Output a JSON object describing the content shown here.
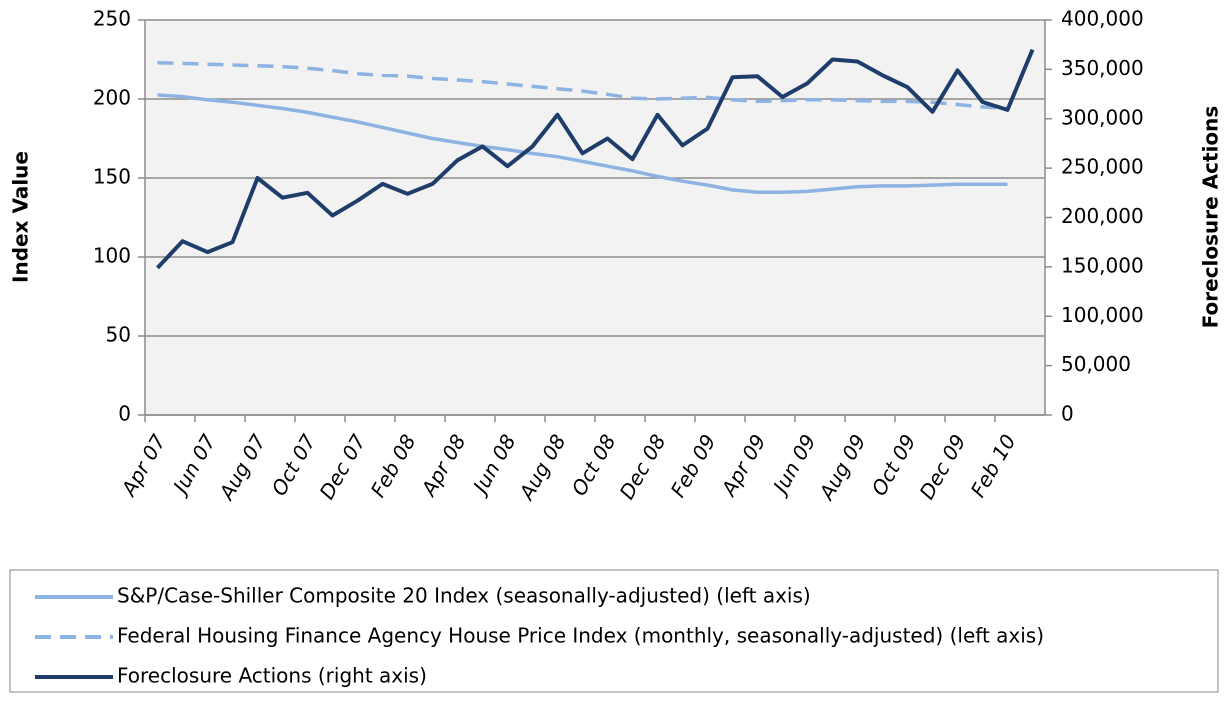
{
  "chart_data": {
    "type": "line",
    "ylabel": "Index Value",
    "y2label": "Foreclosure Actions",
    "categories": [
      "Apr 07",
      null,
      "Jun 07",
      null,
      "Aug 07",
      null,
      "Oct 07",
      null,
      "Dec 07",
      null,
      "Feb 08",
      null,
      "Apr 08",
      null,
      "Jun 08",
      null,
      "Aug 08",
      null,
      "Oct 08",
      null,
      "Dec 08",
      null,
      "Feb 09",
      null,
      "Apr 09",
      null,
      "Jun 09",
      null,
      "Aug 09",
      null,
      "Oct 09",
      null,
      "Dec 09",
      null,
      "Feb 10",
      null
    ],
    "series": [
      {
        "name": "S&P/Case-Shiller Composite 20 Index (seasonally-adjusted) (left axis)",
        "color": "#8db3e2",
        "dashed": false,
        "values": [
          202.5,
          201.5,
          199.5,
          198,
          196,
          194,
          191.5,
          188.5,
          185.5,
          182,
          178.5,
          175,
          172.5,
          170,
          168,
          165.5,
          163.5,
          160.5,
          157.5,
          154.5,
          151,
          148,
          145.5,
          142.5,
          141,
          141,
          141.5,
          143,
          144.5,
          145,
          145,
          145.5,
          146,
          146,
          146,
          null
        ]
      },
      {
        "name": "Federal Housing Finance Agency House Price Index (monthly, seasonally-adjusted) (left axis)",
        "color": "#8db3e2",
        "dashed": true,
        "values": [
          223,
          222.5,
          222,
          221.5,
          221,
          220.5,
          219.5,
          218,
          216,
          215,
          214.5,
          213,
          212,
          211,
          209.5,
          208,
          206.5,
          205,
          203,
          200.5,
          200,
          200.5,
          201,
          199.5,
          198.5,
          199,
          199.5,
          199.5,
          199,
          198.5,
          198.5,
          198,
          196.5,
          195,
          194,
          null
        ]
      },
      {
        "name": "Foreclosure Actions (right axis)",
        "color": "#1f3d6b",
        "dashed": false,
        "axis": "y2",
        "values": [
          149000,
          176000,
          165000,
          175000,
          240000,
          220000,
          225000,
          202000,
          217000,
          234000,
          224000,
          234000,
          258000,
          272000,
          252000,
          272000,
          304000,
          265000,
          280000,
          259000,
          304000,
          273000,
          290000,
          342000,
          343000,
          322000,
          336000,
          360000,
          358000,
          344000,
          332000,
          307000,
          349000,
          317000,
          309000,
          370000
        ]
      }
    ],
    "ylim": [
      0,
      250
    ],
    "yticks": [
      0,
      50,
      100,
      150,
      200,
      250
    ],
    "y2lim": [
      0,
      400000
    ],
    "y2ticks": [
      0,
      {
        "value": 50000,
        "label": "50,000"
      },
      {
        "value": 100000,
        "label": "100,000"
      },
      {
        "value": 150000,
        "label": "150,000"
      },
      {
        "value": 200000,
        "label": "200,000"
      },
      {
        "value": 250000,
        "label": "250,000"
      },
      {
        "value": 300000,
        "label": "300,000"
      },
      {
        "value": 350000,
        "label": "350,000"
      },
      {
        "value": 400000,
        "label": "400,000"
      }
    ],
    "grid": true,
    "legend": "bottom"
  }
}
